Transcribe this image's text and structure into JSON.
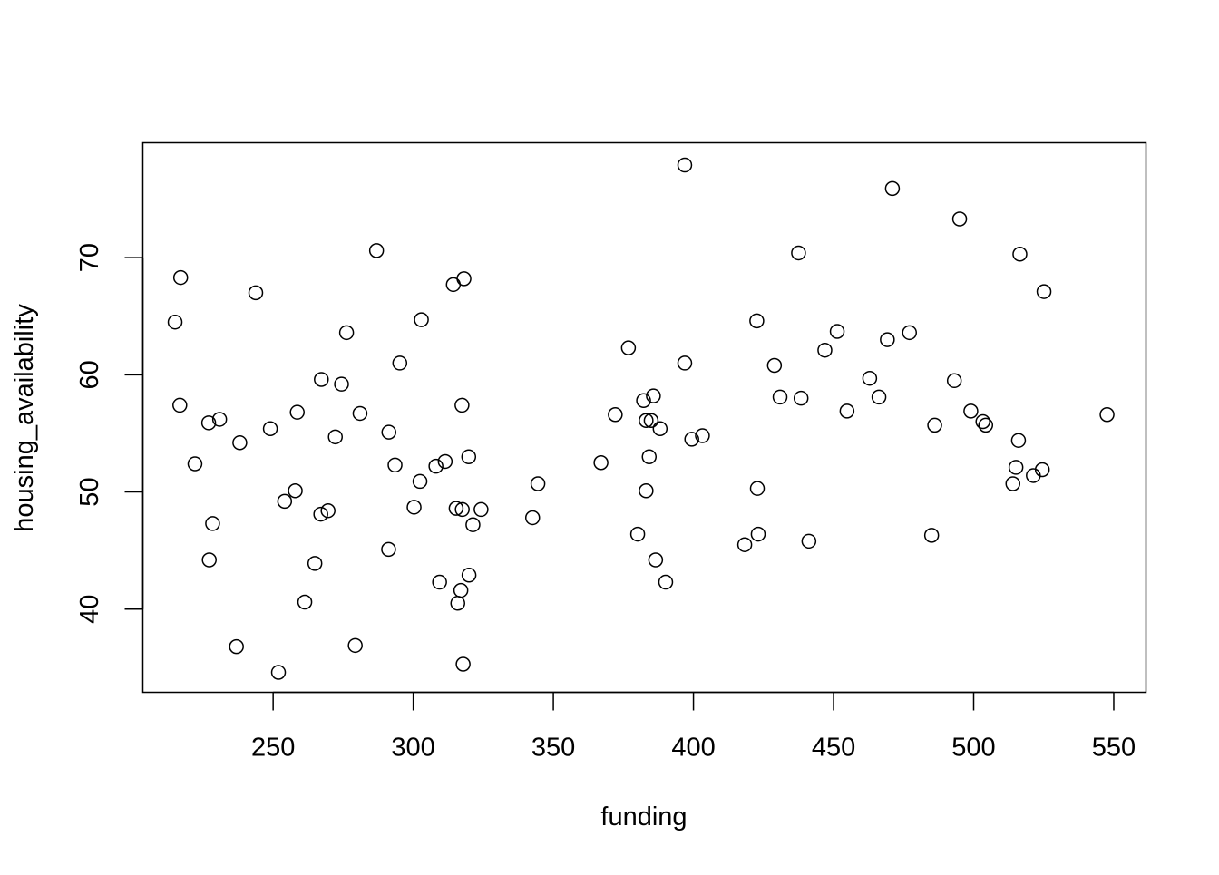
{
  "chart_data": {
    "type": "scatter",
    "title": "",
    "xlabel": "funding",
    "ylabel": "housing_availability",
    "xlim": [
      203.5,
      561.5
    ],
    "ylim": [
      32.9,
      79.8
    ],
    "xticks": [
      250,
      300,
      350,
      400,
      450,
      500,
      550
    ],
    "yticks": [
      40,
      50,
      60,
      70
    ],
    "grid": false,
    "legend": "none",
    "marker": "open-circle",
    "marker_color": "#000000",
    "points": [
      {
        "x": 215.0,
        "y": 64.5
      },
      {
        "x": 217.0,
        "y": 68.3
      },
      {
        "x": 216.7,
        "y": 57.4
      },
      {
        "x": 222.1,
        "y": 52.4
      },
      {
        "x": 227.0,
        "y": 55.9
      },
      {
        "x": 230.9,
        "y": 56.2
      },
      {
        "x": 227.2,
        "y": 44.2
      },
      {
        "x": 228.4,
        "y": 47.3
      },
      {
        "x": 236.9,
        "y": 36.8
      },
      {
        "x": 238.1,
        "y": 54.2
      },
      {
        "x": 243.8,
        "y": 67.0
      },
      {
        "x": 249.0,
        "y": 55.4
      },
      {
        "x": 251.9,
        "y": 34.6
      },
      {
        "x": 254.1,
        "y": 49.2
      },
      {
        "x": 257.9,
        "y": 50.1
      },
      {
        "x": 258.6,
        "y": 56.8
      },
      {
        "x": 261.3,
        "y": 40.6
      },
      {
        "x": 264.9,
        "y": 43.9
      },
      {
        "x": 267.2,
        "y": 59.6
      },
      {
        "x": 267.0,
        "y": 48.1
      },
      {
        "x": 269.6,
        "y": 48.4
      },
      {
        "x": 272.2,
        "y": 54.7
      },
      {
        "x": 274.4,
        "y": 59.2
      },
      {
        "x": 276.2,
        "y": 63.6
      },
      {
        "x": 279.3,
        "y": 36.9
      },
      {
        "x": 281.0,
        "y": 56.7
      },
      {
        "x": 286.9,
        "y": 70.6
      },
      {
        "x": 291.3,
        "y": 55.1
      },
      {
        "x": 291.2,
        "y": 45.1
      },
      {
        "x": 293.5,
        "y": 52.3
      },
      {
        "x": 295.2,
        "y": 61.0
      },
      {
        "x": 300.3,
        "y": 48.7
      },
      {
        "x": 302.4,
        "y": 50.9
      },
      {
        "x": 302.9,
        "y": 64.7
      },
      {
        "x": 308.1,
        "y": 52.2
      },
      {
        "x": 309.4,
        "y": 42.3
      },
      {
        "x": 311.4,
        "y": 52.6
      },
      {
        "x": 314.3,
        "y": 67.7
      },
      {
        "x": 315.3,
        "y": 48.6
      },
      {
        "x": 315.9,
        "y": 40.5
      },
      {
        "x": 317.0,
        "y": 41.6
      },
      {
        "x": 317.4,
        "y": 57.4
      },
      {
        "x": 317.5,
        "y": 48.5
      },
      {
        "x": 317.8,
        "y": 35.3
      },
      {
        "x": 318.1,
        "y": 68.2
      },
      {
        "x": 319.8,
        "y": 53.0
      },
      {
        "x": 319.9,
        "y": 42.9
      },
      {
        "x": 321.3,
        "y": 47.2
      },
      {
        "x": 324.2,
        "y": 48.5
      },
      {
        "x": 342.6,
        "y": 47.8
      },
      {
        "x": 344.5,
        "y": 50.7
      },
      {
        "x": 367.0,
        "y": 52.5
      },
      {
        "x": 372.1,
        "y": 56.6
      },
      {
        "x": 376.8,
        "y": 62.3
      },
      {
        "x": 380.1,
        "y": 46.4
      },
      {
        "x": 382.2,
        "y": 57.8
      },
      {
        "x": 383.1,
        "y": 56.1
      },
      {
        "x": 383.1,
        "y": 50.1
      },
      {
        "x": 384.2,
        "y": 53.0
      },
      {
        "x": 384.9,
        "y": 56.1
      },
      {
        "x": 385.7,
        "y": 58.2
      },
      {
        "x": 386.5,
        "y": 44.2
      },
      {
        "x": 388.1,
        "y": 55.4
      },
      {
        "x": 390.1,
        "y": 42.3
      },
      {
        "x": 396.9,
        "y": 61.0
      },
      {
        "x": 396.9,
        "y": 77.9
      },
      {
        "x": 399.4,
        "y": 54.5
      },
      {
        "x": 403.2,
        "y": 54.8
      },
      {
        "x": 418.3,
        "y": 45.5
      },
      {
        "x": 422.6,
        "y": 64.6
      },
      {
        "x": 422.8,
        "y": 50.3
      },
      {
        "x": 423.1,
        "y": 46.4
      },
      {
        "x": 428.9,
        "y": 60.8
      },
      {
        "x": 430.9,
        "y": 58.1
      },
      {
        "x": 437.5,
        "y": 70.4
      },
      {
        "x": 438.4,
        "y": 58.0
      },
      {
        "x": 441.2,
        "y": 45.8
      },
      {
        "x": 446.9,
        "y": 62.1
      },
      {
        "x": 451.3,
        "y": 63.7
      },
      {
        "x": 454.8,
        "y": 56.9
      },
      {
        "x": 462.9,
        "y": 59.7
      },
      {
        "x": 466.2,
        "y": 58.1
      },
      {
        "x": 469.2,
        "y": 63.0
      },
      {
        "x": 471.0,
        "y": 75.9
      },
      {
        "x": 477.1,
        "y": 63.6
      },
      {
        "x": 485.0,
        "y": 46.3
      },
      {
        "x": 486.1,
        "y": 55.7
      },
      {
        "x": 493.1,
        "y": 59.5
      },
      {
        "x": 495.0,
        "y": 73.3
      },
      {
        "x": 499.0,
        "y": 56.9
      },
      {
        "x": 503.3,
        "y": 56.0
      },
      {
        "x": 504.3,
        "y": 55.7
      },
      {
        "x": 514.0,
        "y": 50.7
      },
      {
        "x": 515.1,
        "y": 52.1
      },
      {
        "x": 516.0,
        "y": 54.4
      },
      {
        "x": 516.5,
        "y": 70.3
      },
      {
        "x": 521.3,
        "y": 51.4
      },
      {
        "x": 524.5,
        "y": 51.9
      },
      {
        "x": 525.1,
        "y": 67.1
      },
      {
        "x": 547.6,
        "y": 56.6
      }
    ]
  }
}
